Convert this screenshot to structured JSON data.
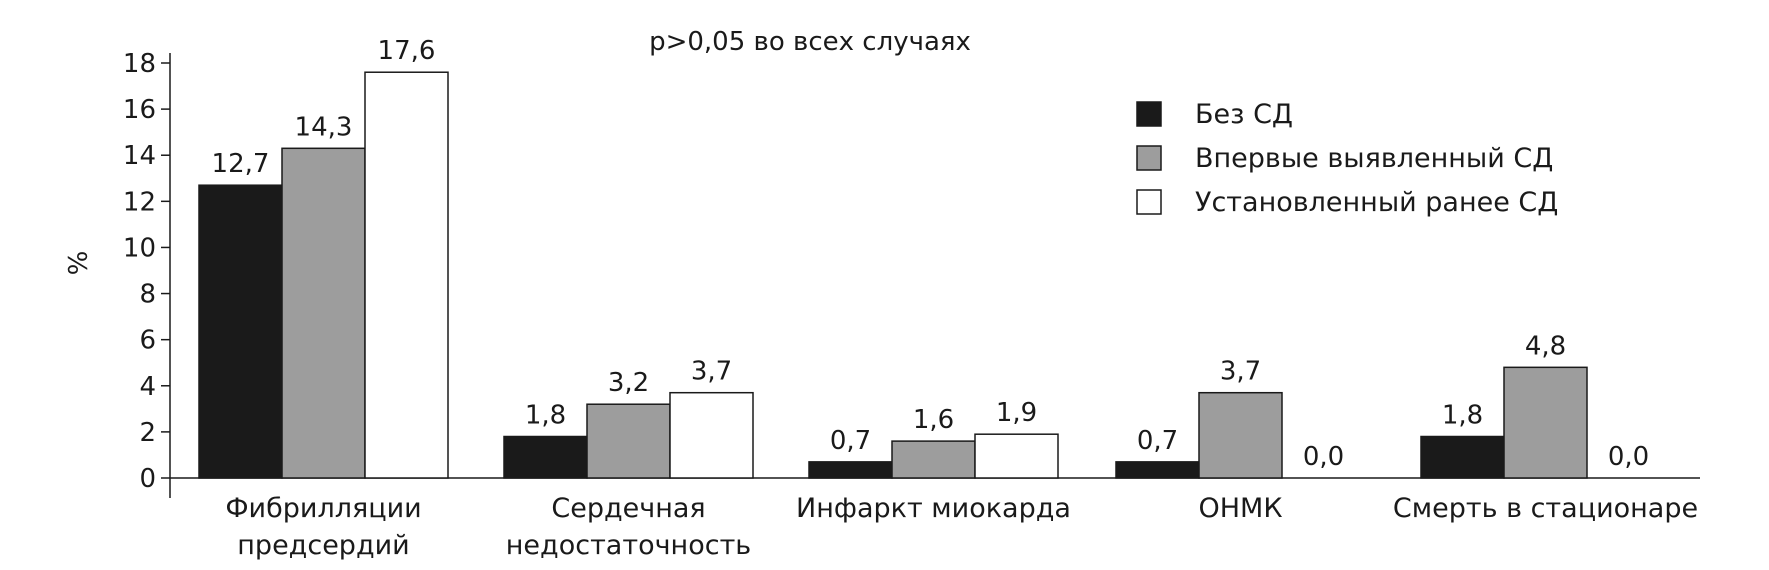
{
  "chart_data": {
    "type": "bar",
    "title": "",
    "annotation": "p>0,05 во всех случаях",
    "ylabel": "%",
    "xlabel": "",
    "ylim": [
      0,
      18
    ],
    "yticks": [
      0,
      2,
      4,
      6,
      8,
      10,
      12,
      14,
      16,
      18
    ],
    "grid": false,
    "legend_position": "top-right",
    "categories": [
      [
        "Фибрилляции",
        "предсердий"
      ],
      [
        "Сердечная",
        "недостаточность"
      ],
      [
        "Инфаркт миокарда"
      ],
      [
        "ОНМК"
      ],
      [
        "Смерть в стационаре"
      ]
    ],
    "series": [
      {
        "name": "Без СД",
        "color": "#1a1a1a",
        "values": [
          12.7,
          1.8,
          0.7,
          0.7,
          1.8
        ],
        "labels": [
          "12,7",
          "1,8",
          "0,7",
          "0,7",
          "1,8"
        ]
      },
      {
        "name": "Впервые выявленный СД",
        "color": "#9d9d9d",
        "values": [
          14.3,
          3.2,
          1.6,
          3.7,
          4.8
        ],
        "labels": [
          "14,3",
          "3,2",
          "1,6",
          "3,7",
          "4,8"
        ]
      },
      {
        "name": "Установленный ранее СД",
        "color": "#ffffff",
        "values": [
          17.6,
          3.7,
          1.9,
          0.0,
          0.0
        ],
        "labels": [
          "17,6",
          "3,7",
          "1,9",
          "0,0",
          "0,0"
        ]
      }
    ]
  }
}
